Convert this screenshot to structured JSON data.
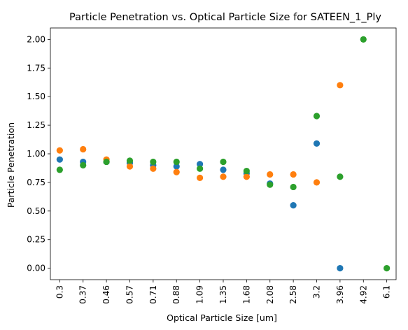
{
  "chart_data": {
    "type": "scatter",
    "title": "Particle Penetration vs. Optical Particle Size for SATEEN_1_Ply",
    "xlabel": "Optical Particle Size [um]",
    "ylabel": "Particle Penetration",
    "categories": [
      "0.3",
      "0.37",
      "0.46",
      "0.57",
      "0.71",
      "0.88",
      "1.09",
      "1.35",
      "1.68",
      "2.08",
      "2.58",
      "3.2",
      "3.96",
      "4.92",
      "6.1"
    ],
    "ylim": [
      -0.1,
      2.1
    ],
    "yticks": [
      "0.00",
      "0.25",
      "0.50",
      "0.75",
      "1.00",
      "1.25",
      "1.50",
      "1.75",
      "2.00"
    ],
    "grid": false,
    "series": [
      {
        "color": "#1f77b4",
        "points": [
          {
            "x": "0.3",
            "y": 0.95
          },
          {
            "x": "0.37",
            "y": 0.93
          },
          {
            "x": "0.46",
            "y": 0.93
          },
          {
            "x": "0.57",
            "y": 0.92
          },
          {
            "x": "0.71",
            "y": 0.9
          },
          {
            "x": "0.88",
            "y": 0.89
          },
          {
            "x": "1.09",
            "y": 0.91
          },
          {
            "x": "1.35",
            "y": 0.86
          },
          {
            "x": "1.68",
            "y": 0.83
          },
          {
            "x": "2.08",
            "y": 0.74
          },
          {
            "x": "2.58",
            "y": 0.55
          },
          {
            "x": "3.2",
            "y": 1.09
          },
          {
            "x": "3.96",
            "y": 0.0
          }
        ]
      },
      {
        "color": "#ff7f0e",
        "points": [
          {
            "x": "0.3",
            "y": 1.03
          },
          {
            "x": "0.37",
            "y": 1.04
          },
          {
            "x": "0.46",
            "y": 0.95
          },
          {
            "x": "0.57",
            "y": 0.89
          },
          {
            "x": "0.71",
            "y": 0.87
          },
          {
            "x": "0.88",
            "y": 0.84
          },
          {
            "x": "1.09",
            "y": 0.79
          },
          {
            "x": "1.35",
            "y": 0.8
          },
          {
            "x": "1.68",
            "y": 0.8
          },
          {
            "x": "2.08",
            "y": 0.82
          },
          {
            "x": "2.58",
            "y": 0.82
          },
          {
            "x": "3.2",
            "y": 0.75
          },
          {
            "x": "3.96",
            "y": 1.6
          }
        ]
      },
      {
        "color": "#2ca02c",
        "points": [
          {
            "x": "0.3",
            "y": 0.86
          },
          {
            "x": "0.37",
            "y": 0.9
          },
          {
            "x": "0.46",
            "y": 0.93
          },
          {
            "x": "0.57",
            "y": 0.94
          },
          {
            "x": "0.71",
            "y": 0.93
          },
          {
            "x": "0.88",
            "y": 0.93
          },
          {
            "x": "1.09",
            "y": 0.87
          },
          {
            "x": "1.35",
            "y": 0.93
          },
          {
            "x": "1.68",
            "y": 0.85
          },
          {
            "x": "2.08",
            "y": 0.73
          },
          {
            "x": "2.58",
            "y": 0.71
          },
          {
            "x": "3.2",
            "y": 1.33
          },
          {
            "x": "3.96",
            "y": 0.8
          },
          {
            "x": "4.92",
            "y": 2.0
          },
          {
            "x": "6.1",
            "y": 0.0
          }
        ]
      }
    ]
  }
}
